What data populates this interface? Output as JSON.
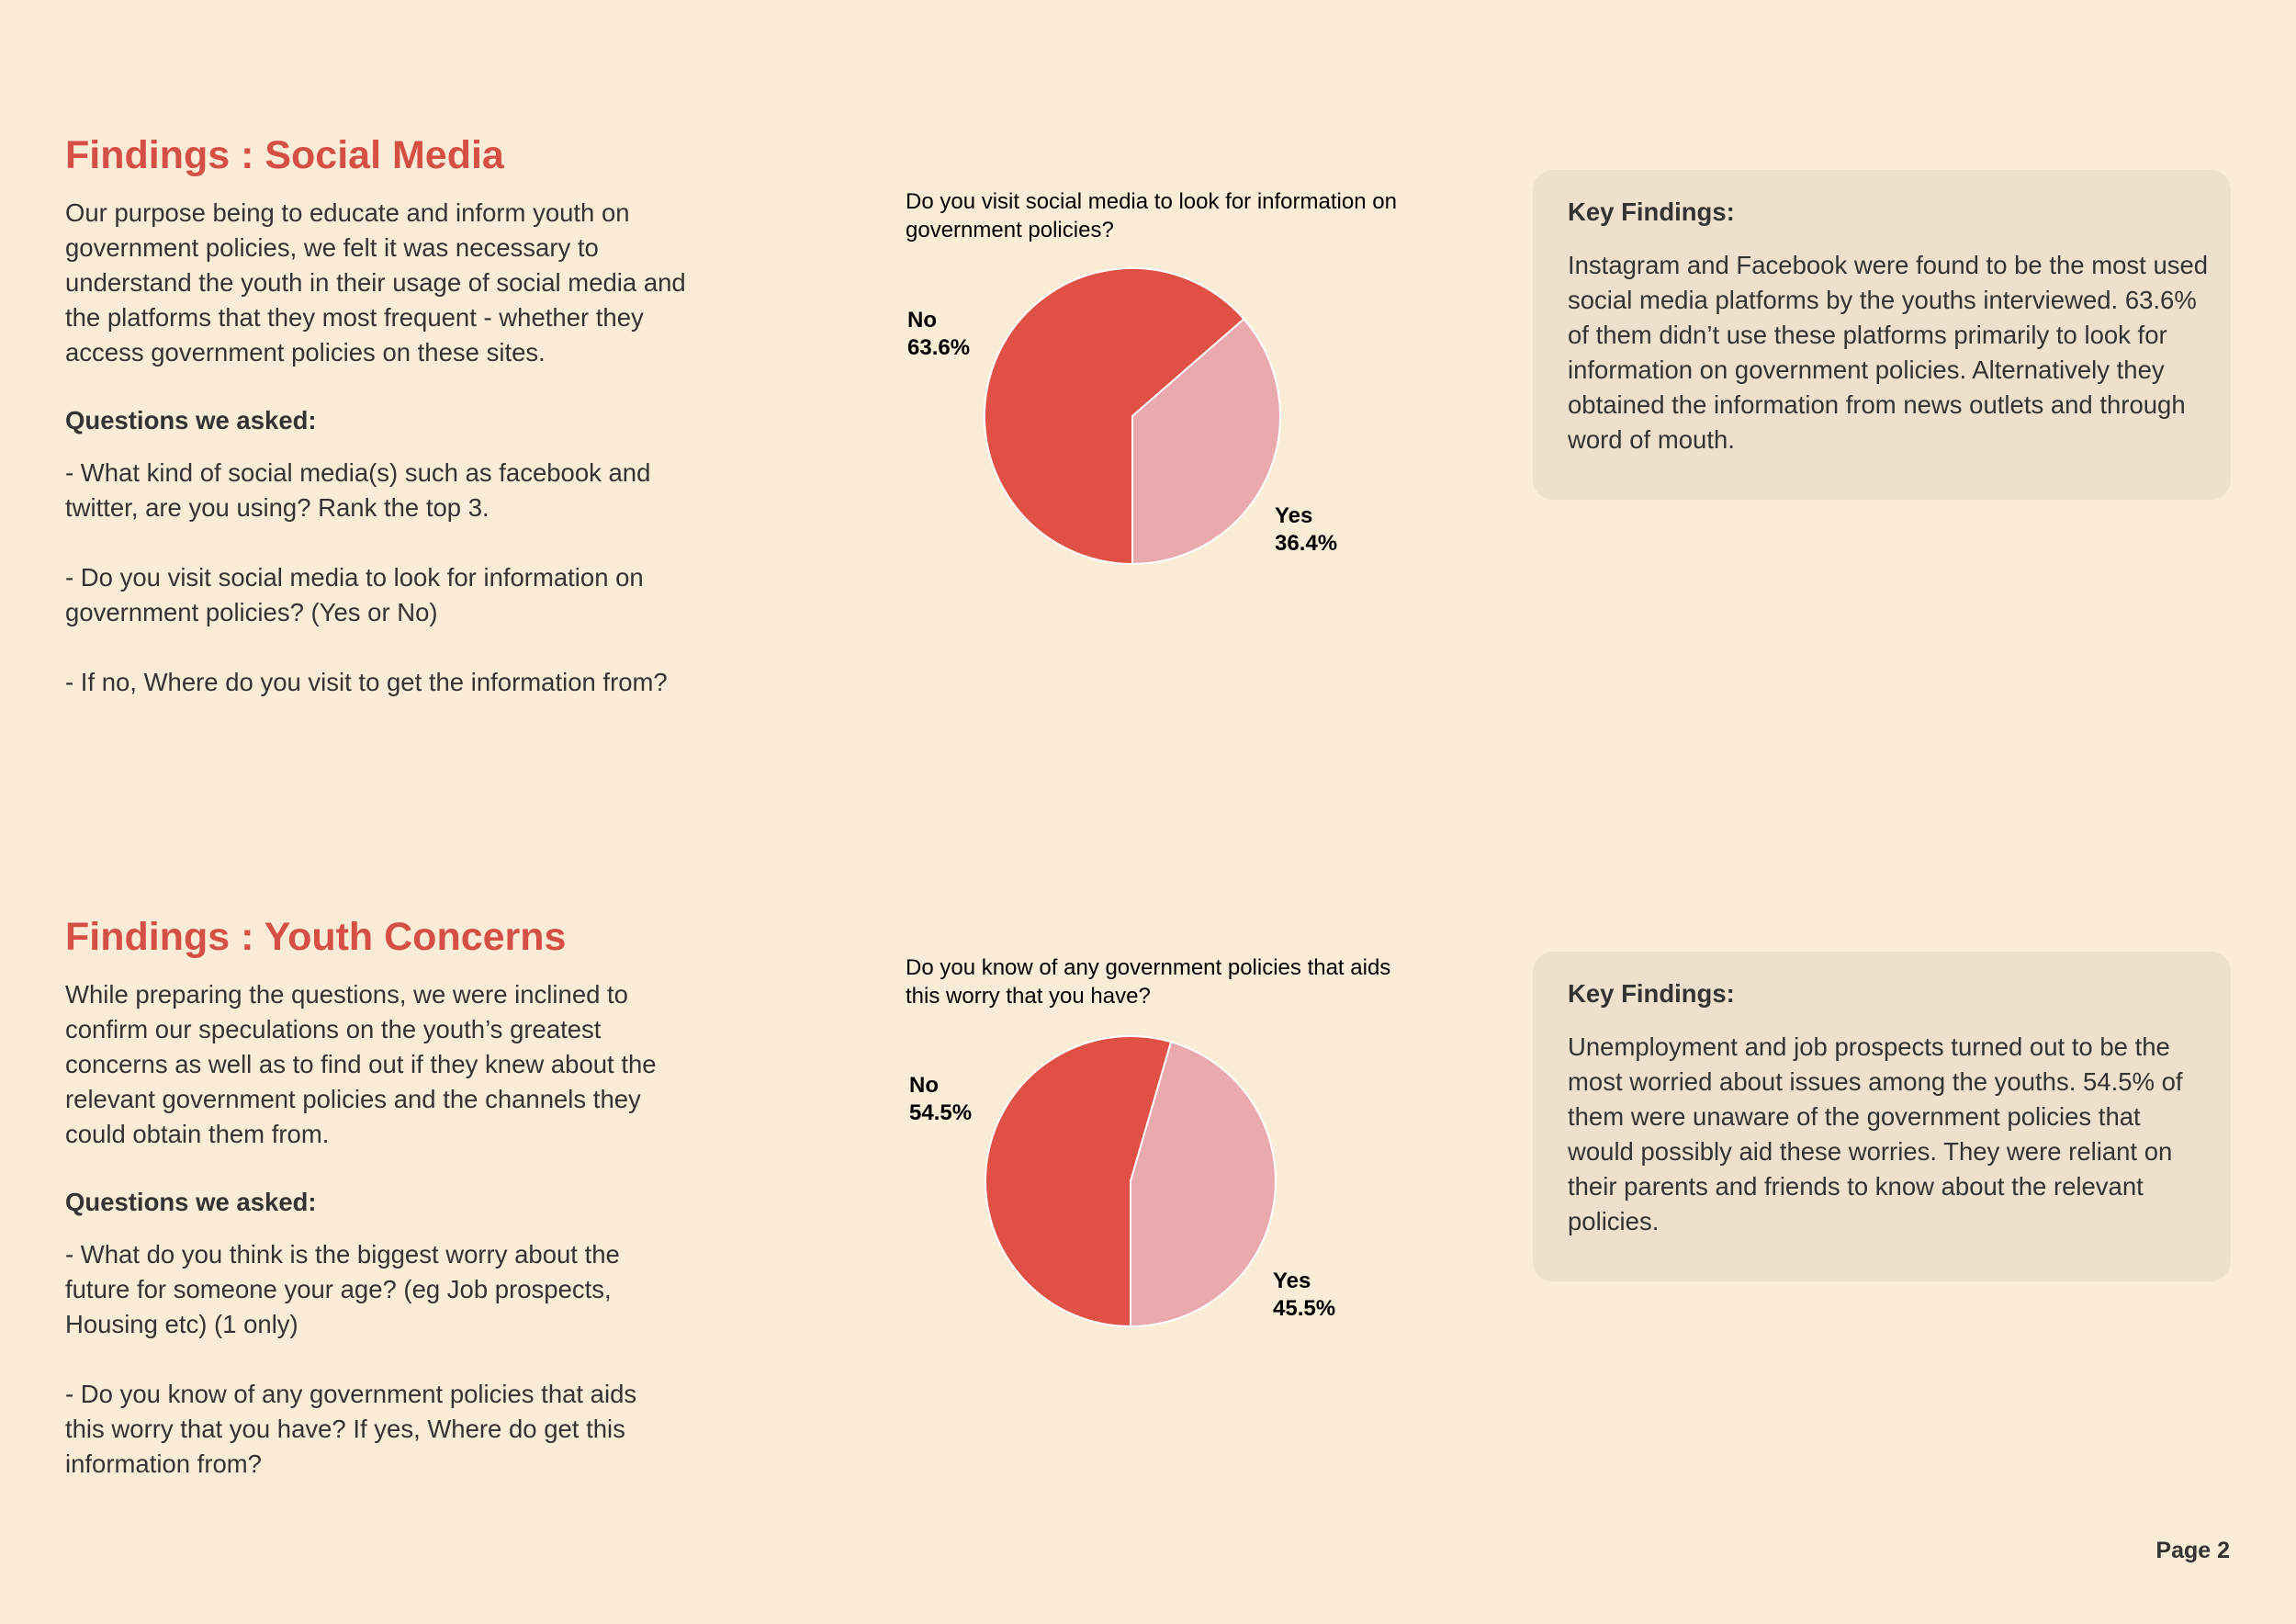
{
  "colors": {
    "background": "#fbecd8",
    "heading": "#d64f45",
    "card": "#ede0cc",
    "pie_no": "#e05045",
    "pie_yes": "#eaa9ae",
    "text": "#333333"
  },
  "sections": [
    {
      "heading": "Findings : Social Media",
      "intro": "Our purpose being to educate and inform youth on government policies, we felt it was necessary to understand the youth in their usage of social media and the platforms that they most frequent - whether they access government policies on these sites.",
      "questions_heading": "Questions we asked:",
      "questions": [
        "- What kind of social media(s) such as facebook and\n   twitter, are you using? Rank the top 3.",
        "- Do you visit social media to look for information on\n  government policies? (Yes or No)",
        "- If no, Where do you visit to get the information from?"
      ],
      "key_findings_title": "Key Findings:",
      "key_findings_text": "Instagram and Facebook were found to be the most used social media platforms by the youths interviewed. 63.6% of them didn’t use these platforms primarily to look for information on government policies. Alternatively they obtained the information from news outlets and through word of mouth."
    },
    {
      "heading": "Findings : Youth Concerns",
      "intro": "While preparing the questions, we were inclined to confirm our speculations on the youth’s greatest concerns as well as to find out if they knew about the relevant government policies and the channels they could obtain them from.",
      "questions_heading": "Questions we asked:",
      "questions": [
        "- What do you think is the biggest worry about the\n  future for someone your age? (eg Job prospects,\n  Housing etc) (1 only)",
        "- Do you know of any government policies that aids\n  this worry that you have? If yes, Where do get this\n  information from?"
      ],
      "key_findings_title": "Key Findings:",
      "key_findings_text": "Unemployment and job prospects turned out to be the most worried about issues among the youths. 54.5% of them were unaware of the government policies that would possibly aid these worries. They were reliant on their parents and friends to know about the relevant policies."
    }
  ],
  "chart_data": [
    {
      "type": "pie",
      "title": "Do you visit social media to look for information on government policies?",
      "slices": [
        {
          "label": "No",
          "value": 63.6,
          "value_label": "63.6%",
          "color": "#e05045"
        },
        {
          "label": "Yes",
          "value": 36.4,
          "value_label": "36.4%",
          "color": "#eaa9ae"
        }
      ]
    },
    {
      "type": "pie",
      "title": "Do you know of any government policies that aids this worry that you have?",
      "slices": [
        {
          "label": "No",
          "value": 54.5,
          "value_label": "54.5%",
          "color": "#e05045"
        },
        {
          "label": "Yes",
          "value": 45.5,
          "value_label": "45.5%",
          "color": "#eaa9ae"
        }
      ]
    }
  ],
  "page_label": "Page 2"
}
